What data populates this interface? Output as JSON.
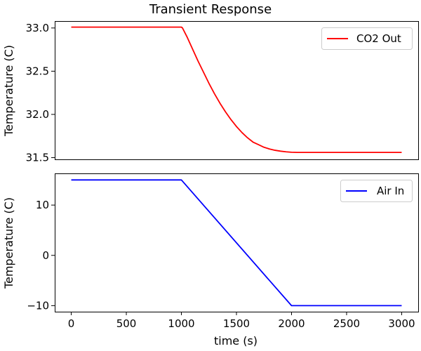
{
  "chart_data": {
    "type": "line",
    "title": "Transient Response",
    "xlabel": "time (s)",
    "xlim": [
      -150,
      3150
    ],
    "x_ticks": [
      0,
      500,
      1000,
      1500,
      2000,
      2500,
      3000
    ],
    "subplots": [
      {
        "ylabel": "Temperature (C)",
        "ylim": [
          31.48,
          33.08
        ],
        "y_ticks": [
          31.5,
          32.0,
          32.5,
          33.0
        ],
        "y_tick_labels": [
          "31.5",
          "32.0",
          "32.5",
          "33.0"
        ],
        "legend_position": "upper-right",
        "series": [
          {
            "name": "CO2 Out",
            "color": "#ff0000",
            "x": [
              0,
              1000,
              1010,
              1050,
              1100,
              1150,
              1200,
              1250,
              1300,
              1350,
              1400,
              1450,
              1500,
              1550,
              1600,
              1650,
              1700,
              1750,
              1800,
              1850,
              1900,
              1950,
              2000,
              2050,
              3000
            ],
            "y": [
              33.01,
              33.01,
              33.0,
              32.9,
              32.76,
              32.62,
              32.49,
              32.36,
              32.24,
              32.13,
              32.03,
              31.94,
              31.86,
              31.79,
              31.73,
              31.68,
              31.65,
              31.62,
              31.6,
              31.585,
              31.575,
              31.567,
              31.562,
              31.56,
              31.56
            ]
          }
        ]
      },
      {
        "ylabel": "Temperature (C)",
        "ylim": [
          -11.2,
          16.3
        ],
        "y_ticks": [
          -10,
          0,
          10
        ],
        "y_tick_labels": [
          "−10",
          "0",
          "10"
        ],
        "legend_position": "upper-right",
        "series": [
          {
            "name": "Air In",
            "color": "#0000ff",
            "x": [
              0,
              1000,
              2000,
              3000
            ],
            "y": [
              15,
              15,
              -10,
              -10
            ]
          }
        ]
      }
    ]
  }
}
